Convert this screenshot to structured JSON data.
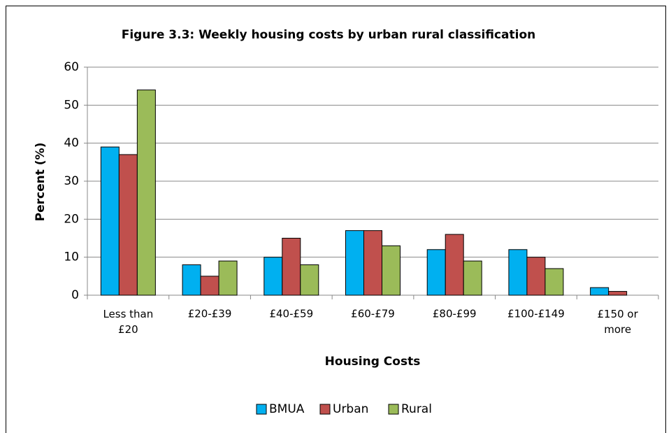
{
  "chart_data": {
    "type": "bar",
    "title": "Figure 3.3:  Weekly housing costs by urban rural classification",
    "x_label": "Housing Costs",
    "y_label": "Percent (%)",
    "categories": [
      "Less than £20",
      "£20-£39",
      "£40-£59",
      "£60-£79",
      "£80-£99",
      "£100-£149",
      "£150 or more"
    ],
    "series": [
      {
        "name": "BMUA",
        "color": "#00b0f0",
        "values": [
          39,
          8,
          10,
          17,
          12,
          12,
          2
        ]
      },
      {
        "name": "Urban",
        "color": "#c0504d",
        "values": [
          37,
          5,
          15,
          17,
          16,
          10,
          1
        ]
      },
      {
        "name": "Rural",
        "color": "#9bbb59",
        "values": [
          54,
          9,
          8,
          13,
          9,
          7,
          0
        ]
      }
    ],
    "ylim": [
      0,
      60
    ],
    "yticks": [
      0,
      10,
      20,
      30,
      40,
      50,
      60
    ],
    "grid": true,
    "legend": "bottom"
  }
}
